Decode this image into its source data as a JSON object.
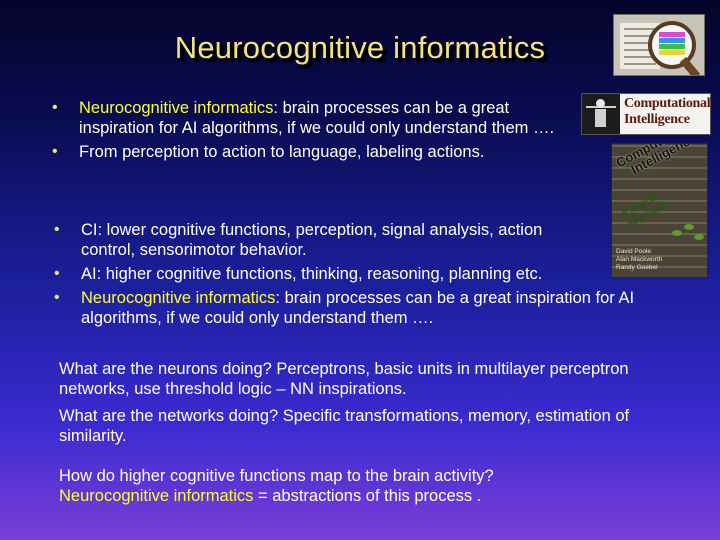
{
  "slide": {
    "title": "Neurocognitive  informatics",
    "bullets_top": [
      {
        "highlight": "Neurocognitive  informatics",
        "text": ": brain processes can be a great inspiration  for AI algorithms, if we could only understand  them …."
      },
      {
        "text": "From perception to action to language,  labeling actions."
      }
    ],
    "bullets_bottom": [
      {
        "text": "CI: lower cognitive  functions,  perception, signal analysis, action control, sensorimotor behavior."
      },
      {
        "text": "AI: higher cognitive  functions, thinking,  reasoning,  planning  etc."
      },
      {
        "highlight": "Neurocognitive  informatics",
        "text": ": brain processes can be a great inspiration  for AI algorithms, if we could only understand  them …."
      }
    ],
    "paragraphs": [
      {
        "text": "What are the neurons doing? Perceptrons, basic units in multilayer perceptron networks, use threshold logic – NN inspirations."
      },
      {
        "text": "What are the networks doing?  Specific transformations, memory, estimation of similarity."
      },
      {
        "line1": "How do higher  cognitive  functions  map to the brain activity?",
        "highlight": "Neurocognitive  informatics",
        "rest": " =  abstractions of this process ."
      }
    ],
    "images": {
      "logo_text_line1": "Computational",
      "logo_text_line2": "Intelligence",
      "book_title_line1": "Computational",
      "book_title_line2": "Intelligence",
      "book_subtitle": "a logical approach",
      "book_authors": [
        "David Poole",
        "Alan Mackworth",
        "Randy Goebel"
      ]
    },
    "colors": {
      "title": "#f4e27a",
      "highlight": "#ffff33",
      "text": "#ffffff",
      "bullet": "#f4e27a"
    }
  }
}
